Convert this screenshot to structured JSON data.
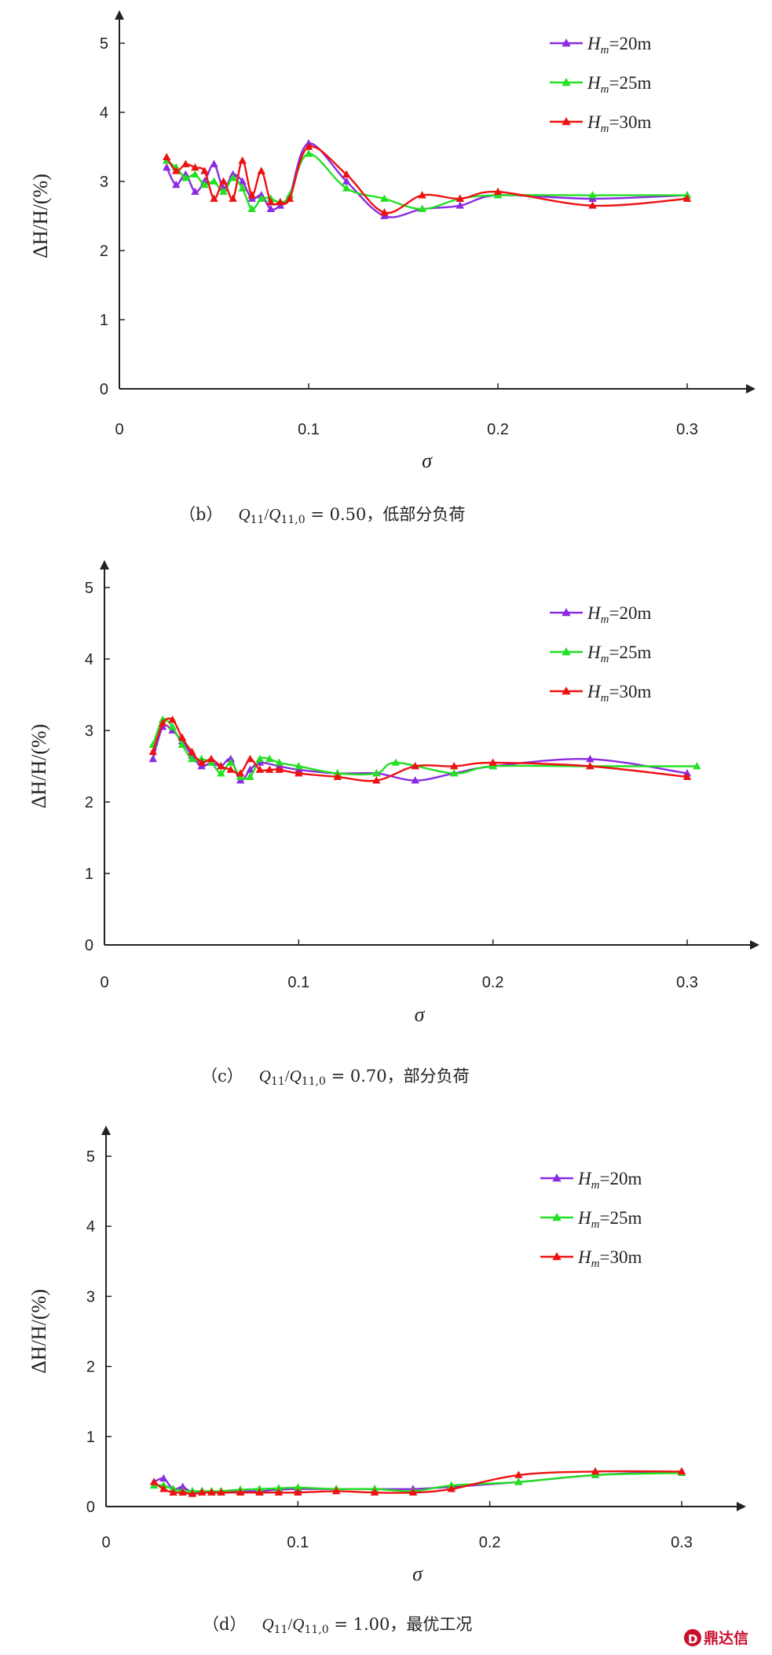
{
  "chart_data": [
    {
      "type": "line",
      "title": "",
      "caption": {
        "label": "（b）",
        "formula_q1": "Q",
        "formula_s1": "11",
        "formula_slash": "/",
        "formula_q2": "Q",
        "formula_s2": "11,0",
        "formula_value": " = 0.50，低部分负荷"
      },
      "xlabel": "σ",
      "ylabel": "ΔH/H/(%)",
      "xlim": [
        0,
        0.33
      ],
      "ylim": [
        0,
        5.2
      ],
      "xticks": [
        "0",
        "0.1",
        "0.2",
        "0.3"
      ],
      "yticks": [
        "0",
        "1",
        "2",
        "3",
        "4",
        "5"
      ],
      "grid": false,
      "legend_position": "top-right",
      "series": [
        {
          "name": "Hm=20m",
          "legend_main": "H",
          "legend_sub": "m",
          "legend_rest": "=20m",
          "color": "#8a2be2",
          "x": [
            0.025,
            0.03,
            0.035,
            0.04,
            0.045,
            0.05,
            0.055,
            0.06,
            0.065,
            0.07,
            0.075,
            0.08,
            0.085,
            0.09,
            0.1,
            0.12,
            0.14,
            0.16,
            0.18,
            0.2,
            0.25,
            0.3
          ],
          "y": [
            3.2,
            2.95,
            3.1,
            2.85,
            3.0,
            3.25,
            2.9,
            3.1,
            3.0,
            2.75,
            2.8,
            2.6,
            2.65,
            2.8,
            3.55,
            3.0,
            2.5,
            2.6,
            2.65,
            2.8,
            2.75,
            2.8
          ]
        },
        {
          "name": "Hm=25m",
          "legend_main": "H",
          "legend_sub": "m",
          "legend_rest": "=25m",
          "color": "#22e022",
          "x": [
            0.025,
            0.03,
            0.035,
            0.04,
            0.045,
            0.05,
            0.055,
            0.06,
            0.065,
            0.07,
            0.075,
            0.08,
            0.085,
            0.09,
            0.1,
            0.12,
            0.14,
            0.16,
            0.18,
            0.2,
            0.25,
            0.3
          ],
          "y": [
            3.3,
            3.2,
            3.05,
            3.1,
            2.95,
            3.0,
            2.85,
            3.05,
            2.9,
            2.6,
            2.75,
            2.75,
            2.7,
            2.8,
            3.4,
            2.9,
            2.75,
            2.6,
            2.75,
            2.8,
            2.8,
            2.8
          ]
        },
        {
          "name": "Hm=30m",
          "legend_main": "H",
          "legend_sub": "m",
          "legend_rest": "=30m",
          "color": "#ee1111",
          "x": [
            0.025,
            0.03,
            0.035,
            0.04,
            0.045,
            0.05,
            0.055,
            0.06,
            0.065,
            0.07,
            0.075,
            0.08,
            0.085,
            0.09,
            0.1,
            0.12,
            0.14,
            0.16,
            0.18,
            0.2,
            0.25,
            0.3
          ],
          "y": [
            3.35,
            3.15,
            3.25,
            3.2,
            3.15,
            2.75,
            3.0,
            2.75,
            3.3,
            2.8,
            3.15,
            2.7,
            2.7,
            2.75,
            3.5,
            3.1,
            2.55,
            2.8,
            2.75,
            2.85,
            2.65,
            2.75
          ]
        }
      ]
    },
    {
      "type": "line",
      "title": "",
      "caption": {
        "label": "（c）",
        "formula_q1": "Q",
        "formula_s1": "11",
        "formula_slash": "/",
        "formula_q2": "Q",
        "formula_s2": "11,0",
        "formula_value": " = 0.70，部分负荷"
      },
      "xlabel": "σ",
      "ylabel": "ΔH/H/(%)",
      "xlim": [
        0,
        0.33
      ],
      "ylim": [
        0,
        5.2
      ],
      "xticks": [
        "0",
        "0.1",
        "0.2",
        "0.3"
      ],
      "yticks": [
        "0",
        "1",
        "2",
        "3",
        "4",
        "5"
      ],
      "grid": false,
      "legend_position": "top-right",
      "series": [
        {
          "name": "Hm=20m",
          "legend_main": "H",
          "legend_sub": "m",
          "legend_rest": "=20m",
          "color": "#8a2be2",
          "x": [
            0.025,
            0.03,
            0.035,
            0.04,
            0.045,
            0.05,
            0.055,
            0.06,
            0.065,
            0.07,
            0.075,
            0.08,
            0.09,
            0.1,
            0.12,
            0.14,
            0.16,
            0.18,
            0.2,
            0.25,
            0.3
          ],
          "y": [
            2.6,
            3.05,
            3.0,
            2.85,
            2.65,
            2.5,
            2.55,
            2.5,
            2.6,
            2.3,
            2.45,
            2.55,
            2.5,
            2.45,
            2.4,
            2.4,
            2.3,
            2.4,
            2.5,
            2.6,
            2.4
          ]
        },
        {
          "name": "Hm=25m",
          "legend_main": "H",
          "legend_sub": "m",
          "legend_rest": "=25m",
          "color": "#22e022",
          "x": [
            0.025,
            0.03,
            0.035,
            0.04,
            0.045,
            0.05,
            0.055,
            0.06,
            0.065,
            0.07,
            0.075,
            0.08,
            0.085,
            0.09,
            0.1,
            0.12,
            0.14,
            0.15,
            0.18,
            0.2,
            0.25,
            0.305
          ],
          "y": [
            2.8,
            3.15,
            3.05,
            2.8,
            2.6,
            2.6,
            2.55,
            2.4,
            2.55,
            2.35,
            2.35,
            2.6,
            2.6,
            2.55,
            2.5,
            2.4,
            2.4,
            2.55,
            2.4,
            2.5,
            2.5,
            2.5
          ]
        },
        {
          "name": "Hm=30m",
          "legend_main": "H",
          "legend_sub": "m",
          "legend_rest": "=30m",
          "color": "#ee1111",
          "x": [
            0.025,
            0.03,
            0.035,
            0.04,
            0.045,
            0.05,
            0.055,
            0.06,
            0.065,
            0.07,
            0.075,
            0.08,
            0.085,
            0.09,
            0.1,
            0.12,
            0.14,
            0.16,
            0.18,
            0.2,
            0.25,
            0.3
          ],
          "y": [
            2.7,
            3.1,
            3.15,
            2.9,
            2.7,
            2.55,
            2.6,
            2.5,
            2.45,
            2.4,
            2.6,
            2.45,
            2.45,
            2.45,
            2.4,
            2.35,
            2.3,
            2.5,
            2.5,
            2.55,
            2.5,
            2.35
          ]
        }
      ]
    },
    {
      "type": "line",
      "title": "",
      "caption": {
        "label": "（d）",
        "formula_q1": "Q",
        "formula_s1": "11",
        "formula_slash": "/",
        "formula_q2": "Q",
        "formula_s2": "11,0",
        "formula_value": " = 1.00，最优工况"
      },
      "xlabel": "σ",
      "ylabel": "ΔH/H/(%)",
      "xlim": [
        0,
        0.33
      ],
      "ylim": [
        0,
        5.2
      ],
      "xticks": [
        "0",
        "0.1",
        "0.2",
        "0.3"
      ],
      "yticks": [
        "0",
        "1",
        "2",
        "3",
        "4",
        "5"
      ],
      "grid": false,
      "legend_position": "top-right",
      "series": [
        {
          "name": "Hm=20m",
          "legend_main": "H",
          "legend_sub": "m",
          "legend_rest": "=20m",
          "color": "#8a2be2",
          "x": [
            0.025,
            0.03,
            0.035,
            0.04,
            0.045,
            0.05,
            0.055,
            0.06,
            0.07,
            0.08,
            0.09,
            0.1,
            0.12,
            0.14,
            0.16,
            0.18,
            0.215,
            0.255,
            0.3
          ],
          "y": [
            0.35,
            0.4,
            0.25,
            0.28,
            0.2,
            0.22,
            0.2,
            0.2,
            0.22,
            0.22,
            0.24,
            0.25,
            0.25,
            0.25,
            0.25,
            0.28,
            0.35,
            0.45,
            0.5
          ]
        },
        {
          "name": "Hm=25m",
          "legend_main": "H",
          "legend_sub": "m",
          "legend_rest": "=25m",
          "color": "#22e022",
          "x": [
            0.025,
            0.03,
            0.035,
            0.04,
            0.045,
            0.05,
            0.055,
            0.06,
            0.07,
            0.08,
            0.09,
            0.1,
            0.12,
            0.14,
            0.16,
            0.18,
            0.215,
            0.255,
            0.3
          ],
          "y": [
            0.3,
            0.3,
            0.25,
            0.22,
            0.22,
            0.22,
            0.22,
            0.22,
            0.24,
            0.25,
            0.26,
            0.27,
            0.25,
            0.25,
            0.22,
            0.3,
            0.35,
            0.45,
            0.48
          ]
        },
        {
          "name": "Hm=30m",
          "legend_main": "H",
          "legend_sub": "m",
          "legend_rest": "=30m",
          "color": "#ee1111",
          "x": [
            0.025,
            0.03,
            0.035,
            0.04,
            0.045,
            0.05,
            0.055,
            0.06,
            0.07,
            0.08,
            0.09,
            0.1,
            0.12,
            0.14,
            0.16,
            0.18,
            0.215,
            0.255,
            0.3
          ],
          "y": [
            0.35,
            0.25,
            0.2,
            0.2,
            0.18,
            0.2,
            0.2,
            0.2,
            0.2,
            0.2,
            0.2,
            0.2,
            0.22,
            0.2,
            0.2,
            0.25,
            0.45,
            0.5,
            0.5
          ]
        }
      ]
    }
  ],
  "watermark": {
    "logo_text": "D",
    "text": "鼎达信"
  }
}
